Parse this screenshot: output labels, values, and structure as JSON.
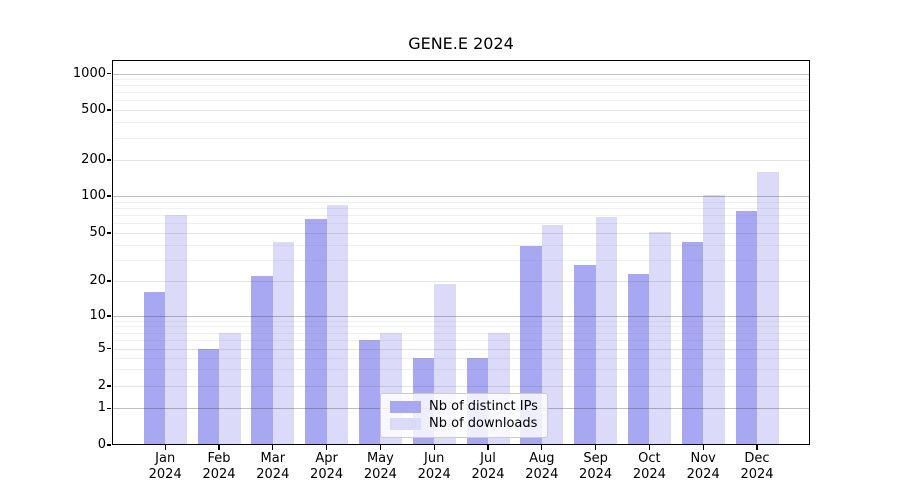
{
  "title": "GENE.E 2024",
  "legend": {
    "position": "lower center",
    "items": [
      {
        "label": "Nb of distinct IPs",
        "color": "#a8a8f2"
      },
      {
        "label": "Nb of downloads",
        "color": "#dbdbf9"
      }
    ]
  },
  "chart_data": {
    "type": "bar",
    "title": "GENE.E 2024",
    "categories": [
      "Jan 2024",
      "Feb 2024",
      "Mar 2024",
      "Apr 2024",
      "May 2024",
      "Jun 2024",
      "Jul 2024",
      "Aug 2024",
      "Sep 2024",
      "Oct 2024",
      "Nov 2024",
      "Dec 2024"
    ],
    "series": [
      {
        "name": "Nb of distinct IPs",
        "color": "#a8a8f2",
        "values": [
          16,
          5,
          22,
          65,
          6,
          4,
          4,
          39,
          27,
          23,
          42,
          75
        ]
      },
      {
        "name": "Nb of downloads",
        "color": "#dbdbf9",
        "values": [
          70,
          7,
          42,
          84,
          7,
          19,
          7,
          58,
          67,
          51,
          102,
          160
        ]
      }
    ],
    "xlabel": "",
    "ylabel": "",
    "yscale": "symlog",
    "ylim": [
      0,
      1300
    ],
    "y_ticks": [
      0,
      1,
      2,
      5,
      10,
      20,
      50,
      100,
      200,
      500,
      1000
    ],
    "y_minor_gridlines": [
      3,
      4,
      6,
      7,
      8,
      9,
      30,
      40,
      60,
      70,
      80,
      90,
      300,
      400,
      600,
      700,
      800,
      900
    ],
    "grid": true,
    "legend_position": "lower center"
  },
  "colors": {
    "major_gridline": "#bdbdbd",
    "mid_gridline": "#e2e2e2",
    "minor_gridline": "#ededed",
    "spine": "#000000",
    "background": "#ffffff"
  }
}
